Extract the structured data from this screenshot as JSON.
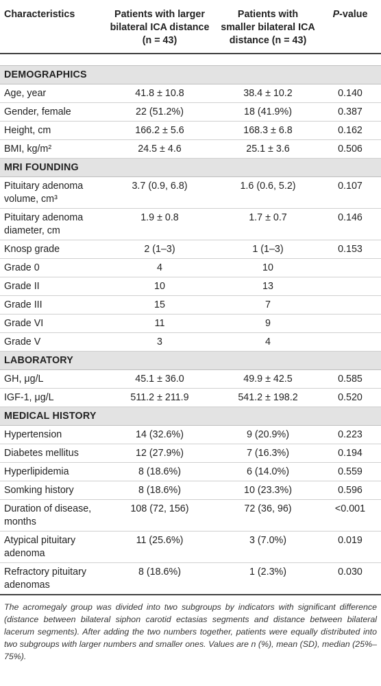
{
  "header": {
    "col1": "Characteristics",
    "col2": "Patients with larger bilateral ICA distance (n = 43)",
    "col3": "Patients with smaller bilateral ICA distance (n = 43)",
    "col4_italic": "P",
    "col4_rest": "-value"
  },
  "sections": [
    {
      "title": "DEMOGRAPHICS",
      "rows": [
        {
          "label": "Age, year",
          "c2": "41.8 ± 10.8",
          "c3": "38.4 ± 10.2",
          "p": "0.140"
        },
        {
          "label": "Gender, female",
          "c2": "22 (51.2%)",
          "c3": "18 (41.9%)",
          "p": "0.387"
        },
        {
          "label": "Height, cm",
          "c2": "166.2 ± 5.6",
          "c3": "168.3 ± 6.8",
          "p": "0.162"
        },
        {
          "label": "BMI, kg/m²",
          "c2": "24.5 ± 4.6",
          "c3": "25.1 ± 3.6",
          "p": "0.506"
        }
      ]
    },
    {
      "title": "MRI FOUNDING",
      "rows": [
        {
          "label": "Pituitary adenoma volume, cm³",
          "c2": "3.7 (0.9, 6.8)",
          "c3": "1.6 (0.6, 5.2)",
          "p": "0.107"
        },
        {
          "label": "Pituitary adenoma diameter, cm",
          "c2": "1.9 ± 0.8",
          "c3": "1.7 ± 0.7",
          "p": "0.146"
        },
        {
          "label": "Knosp grade",
          "c2": "2 (1–3)",
          "c3": "1 (1–3)",
          "p": "0.153"
        },
        {
          "label": "Grade 0",
          "c2": "4",
          "c3": "10",
          "p": ""
        },
        {
          "label": "Grade II",
          "c2": "10",
          "c3": "13",
          "p": ""
        },
        {
          "label": "Grade III",
          "c2": "15",
          "c3": "7",
          "p": ""
        },
        {
          "label": "Grade VI",
          "c2": "11",
          "c3": "9",
          "p": ""
        },
        {
          "label": "Grade V",
          "c2": "3",
          "c3": "4",
          "p": ""
        }
      ]
    },
    {
      "title": "LABORATORY",
      "rows": [
        {
          "label": "GH, μg/L",
          "c2": "45.1 ± 36.0",
          "c3": "49.9 ± 42.5",
          "p": "0.585"
        },
        {
          "label": "IGF-1, μg/L",
          "c2": "511.2 ± 211.9",
          "c3": "541.2 ± 198.2",
          "p": "0.520"
        }
      ]
    },
    {
      "title": "MEDICAL HISTORY",
      "rows": [
        {
          "label": "Hypertension",
          "c2": "14 (32.6%)",
          "c3": "9 (20.9%)",
          "p": "0.223"
        },
        {
          "label": "Diabetes mellitus",
          "c2": "12 (27.9%)",
          "c3": "7 (16.3%)",
          "p": "0.194"
        },
        {
          "label": "Hyperlipidemia",
          "c2": "8 (18.6%)",
          "c3": "6 (14.0%)",
          "p": "0.559"
        },
        {
          "label": "Somking history",
          "c2": "8 (18.6%)",
          "c3": "10 (23.3%)",
          "p": "0.596"
        },
        {
          "label": "Duration of disease, months",
          "c2": "108 (72, 156)",
          "c3": "72 (36, 96)",
          "p": "<0.001"
        },
        {
          "label": "Atypical pituitary adenoma",
          "c2": "11 (25.6%)",
          "c3": "3 (7.0%)",
          "p": "0.019"
        },
        {
          "label": "Refractory pituitary adenomas",
          "c2": "8 (18.6%)",
          "c3": "1 (2.3%)",
          "p": "0.030"
        }
      ]
    }
  ],
  "footnote": "The acromegaly group was divided into two subgroups by indicators with significant difference (distance between bilateral siphon carotid ectasias segments and distance between bilateral lacerum segments). After adding the two numbers together, patients were equally distributed into two subgroups with larger numbers and smaller ones. Values are n (%), mean (SD), median (25%–75%)."
}
